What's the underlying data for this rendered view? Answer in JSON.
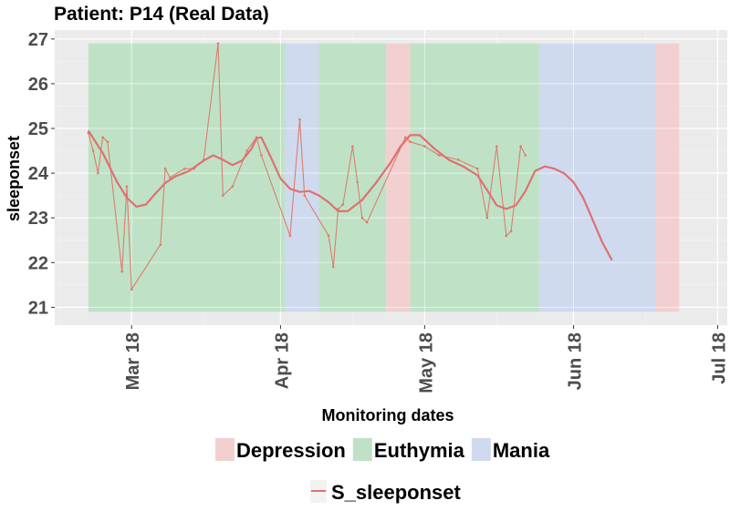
{
  "chart_data": {
    "type": "line",
    "title": "Patient: P14 (Real Data)",
    "xlabel": "Monitoring dates",
    "ylabel": "sleeponset",
    "ylim": [
      20.6,
      27.2
    ],
    "xlim": [
      "2018-02-13",
      "2018-07-03"
    ],
    "yticks": [
      21,
      22,
      23,
      24,
      25,
      26,
      27
    ],
    "xticks": [
      {
        "date": "2018-03-01",
        "label": "Mar 18"
      },
      {
        "date": "2018-04-01",
        "label": "Apr 18"
      },
      {
        "date": "2018-05-01",
        "label": "May 18"
      },
      {
        "date": "2018-06-01",
        "label": "Jun 18"
      },
      {
        "date": "2018-07-01",
        "label": "Jul 18"
      }
    ],
    "grid": true,
    "mood_states": [
      {
        "name": "Depression",
        "color": "#f2d0d0"
      },
      {
        "name": "Euthymia",
        "color": "#bfe2c6"
      },
      {
        "name": "Mania",
        "color": "#cfdaef"
      }
    ],
    "state_periods": [
      {
        "state": "Euthymia",
        "start": "2018-02-20",
        "end": "2018-04-02"
      },
      {
        "state": "Mania",
        "start": "2018-04-02",
        "end": "2018-04-09"
      },
      {
        "state": "Euthymia",
        "start": "2018-04-09",
        "end": "2018-04-23"
      },
      {
        "state": "Depression",
        "start": "2018-04-23",
        "end": "2018-04-28"
      },
      {
        "state": "Euthymia",
        "start": "2018-04-28",
        "end": "2018-05-25"
      },
      {
        "state": "Mania",
        "start": "2018-05-25",
        "end": "2018-06-18"
      },
      {
        "state": "Depression",
        "start": "2018-06-18",
        "end": "2018-06-23"
      }
    ],
    "series": [
      {
        "name": "S_sleeponset",
        "color": "#d97f6b",
        "smooth_color": "#e07070",
        "raw": [
          [
            "2018-02-20",
            24.9
          ],
          [
            "2018-02-21",
            24.5
          ],
          [
            "2018-02-22",
            24.0
          ],
          [
            "2018-02-23",
            24.8
          ],
          [
            "2018-02-24",
            24.7
          ],
          [
            "2018-02-27",
            21.8
          ],
          [
            "2018-02-28",
            23.7
          ],
          [
            "2018-03-01",
            21.4
          ],
          [
            "2018-03-07",
            22.4
          ],
          [
            "2018-03-08",
            24.1
          ],
          [
            "2018-03-09",
            23.9
          ],
          [
            "2018-03-12",
            24.1
          ],
          [
            "2018-03-14",
            24.1
          ],
          [
            "2018-03-16",
            24.3
          ],
          [
            "2018-03-19",
            26.9
          ],
          [
            "2018-03-20",
            23.5
          ],
          [
            "2018-03-22",
            23.7
          ],
          [
            "2018-03-25",
            24.5
          ],
          [
            "2018-03-27",
            24.8
          ],
          [
            "2018-03-28",
            24.4
          ],
          [
            "2018-04-03",
            22.6
          ],
          [
            "2018-04-05",
            25.2
          ],
          [
            "2018-04-06",
            23.5
          ],
          [
            "2018-04-11",
            22.6
          ],
          [
            "2018-04-12",
            21.9
          ],
          [
            "2018-04-13",
            23.2
          ],
          [
            "2018-04-14",
            23.3
          ],
          [
            "2018-04-16",
            24.6
          ],
          [
            "2018-04-17",
            23.8
          ],
          [
            "2018-04-18",
            23.0
          ],
          [
            "2018-04-19",
            22.9
          ],
          [
            "2018-04-27",
            24.8
          ],
          [
            "2018-04-28",
            24.7
          ],
          [
            "2018-05-01",
            24.6
          ],
          [
            "2018-05-04",
            24.4
          ],
          [
            "2018-05-08",
            24.3
          ],
          [
            "2018-05-12",
            24.1
          ],
          [
            "2018-05-14",
            23.0
          ],
          [
            "2018-05-16",
            24.6
          ],
          [
            "2018-05-18",
            22.6
          ],
          [
            "2018-05-19",
            22.7
          ],
          [
            "2018-05-21",
            24.6
          ],
          [
            "2018-05-22",
            24.4
          ]
        ],
        "smooth": [
          [
            "2018-02-20",
            24.95
          ],
          [
            "2018-02-23",
            24.45
          ],
          [
            "2018-02-26",
            23.8
          ],
          [
            "2018-02-28",
            23.45
          ],
          [
            "2018-03-02",
            23.25
          ],
          [
            "2018-03-04",
            23.3
          ],
          [
            "2018-03-06",
            23.55
          ],
          [
            "2018-03-08",
            23.78
          ],
          [
            "2018-03-10",
            23.92
          ],
          [
            "2018-03-13",
            24.05
          ],
          [
            "2018-03-16",
            24.28
          ],
          [
            "2018-03-18",
            24.4
          ],
          [
            "2018-03-20",
            24.3
          ],
          [
            "2018-03-22",
            24.18
          ],
          [
            "2018-03-24",
            24.28
          ],
          [
            "2018-03-26",
            24.55
          ],
          [
            "2018-03-27",
            24.78
          ],
          [
            "2018-03-28",
            24.8
          ],
          [
            "2018-03-30",
            24.35
          ],
          [
            "2018-04-01",
            23.88
          ],
          [
            "2018-04-03",
            23.65
          ],
          [
            "2018-04-05",
            23.58
          ],
          [
            "2018-04-07",
            23.6
          ],
          [
            "2018-04-09",
            23.5
          ],
          [
            "2018-04-11",
            23.35
          ],
          [
            "2018-04-13",
            23.15
          ],
          [
            "2018-04-15",
            23.15
          ],
          [
            "2018-04-18",
            23.4
          ],
          [
            "2018-04-21",
            23.8
          ],
          [
            "2018-04-24",
            24.25
          ],
          [
            "2018-04-26",
            24.6
          ],
          [
            "2018-04-28",
            24.85
          ],
          [
            "2018-04-30",
            24.85
          ],
          [
            "2018-05-03",
            24.55
          ],
          [
            "2018-05-06",
            24.3
          ],
          [
            "2018-05-09",
            24.15
          ],
          [
            "2018-05-12",
            23.95
          ],
          [
            "2018-05-14",
            23.62
          ],
          [
            "2018-05-16",
            23.28
          ],
          [
            "2018-05-18",
            23.2
          ],
          [
            "2018-05-20",
            23.28
          ],
          [
            "2018-05-22",
            23.6
          ],
          [
            "2018-05-24",
            24.05
          ],
          [
            "2018-05-26",
            24.15
          ],
          [
            "2018-05-28",
            24.1
          ],
          [
            "2018-05-30",
            24.0
          ],
          [
            "2018-06-01",
            23.8
          ],
          [
            "2018-06-03",
            23.45
          ],
          [
            "2018-06-05",
            22.95
          ],
          [
            "2018-06-07",
            22.45
          ],
          [
            "2018-06-09",
            22.05
          ]
        ]
      }
    ]
  }
}
